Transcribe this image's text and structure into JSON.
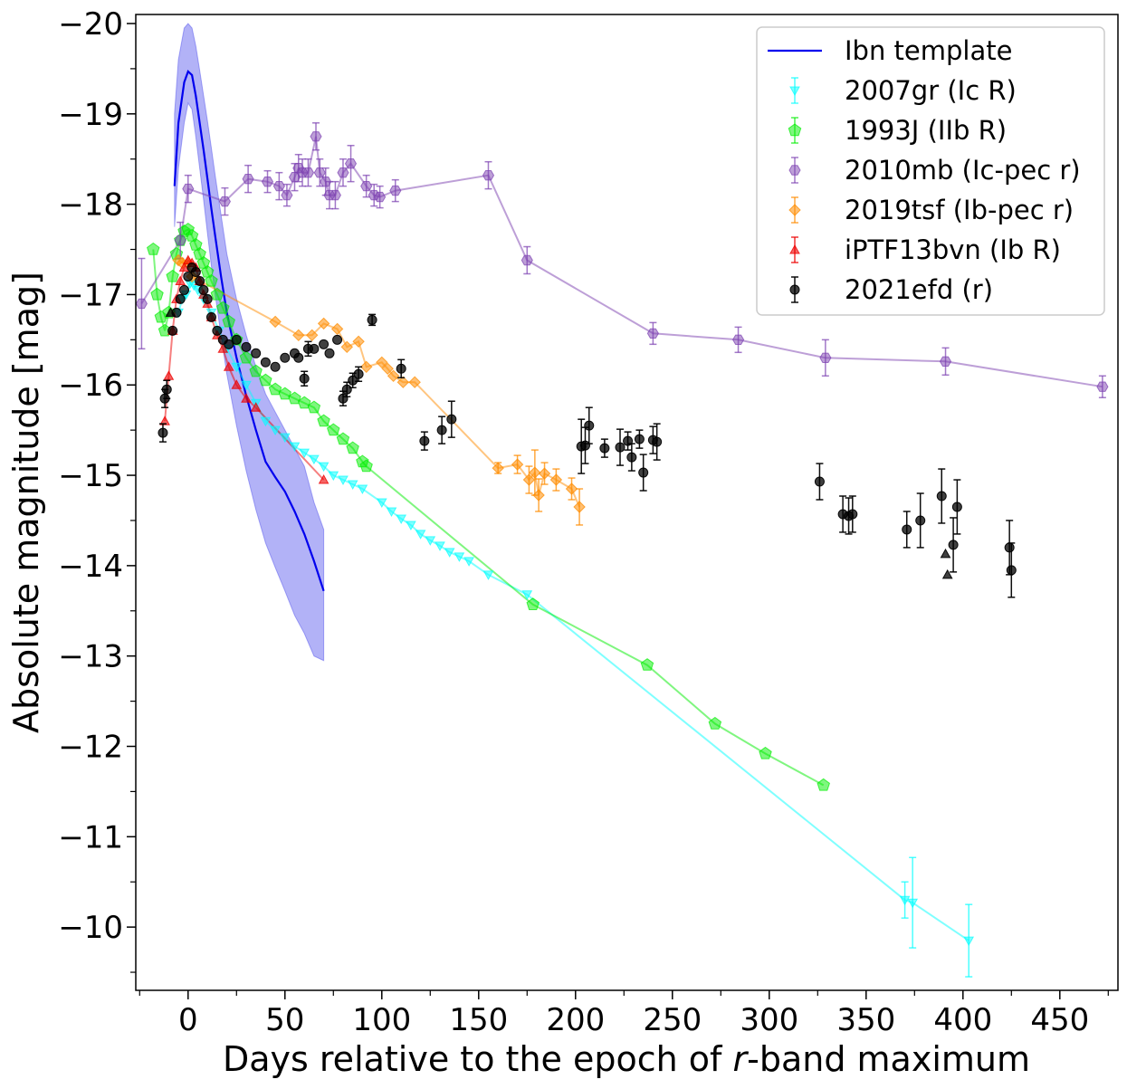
{
  "chart_data": {
    "type": "scatter",
    "xlabel_prefix": "Days relative to the epoch of ",
    "xlabel_italic": "r",
    "xlabel_suffix": "-band maximum",
    "ylabel": "Absolute magnitude [mag]",
    "xlim": [
      -27,
      480
    ],
    "ylim": [
      -9.3,
      -20.1
    ],
    "y_inverted": true,
    "x_ticks": [
      0,
      50,
      100,
      150,
      200,
      250,
      300,
      350,
      400,
      450
    ],
    "x_tick_labels": [
      "0",
      "50",
      "100",
      "150",
      "200",
      "250",
      "300",
      "350",
      "400",
      "450"
    ],
    "y_ticks": [
      -20,
      -19,
      -18,
      -17,
      -16,
      -15,
      -14,
      -13,
      -12,
      -11,
      -10
    ],
    "y_tick_labels": [
      "−20",
      "−19",
      "−18",
      "−17",
      "−16",
      "−15",
      "−14",
      "−13",
      "−12",
      "−11",
      "−10"
    ],
    "legend_position": "top-right",
    "series": [
      {
        "name": "Ibn template",
        "kind": "template",
        "color": "#0000ee",
        "band_color": "#5555ee",
        "x": [
          -7,
          -5,
          -2,
          0,
          2,
          4,
          6,
          8,
          10,
          12,
          14,
          17,
          20,
          25,
          30,
          35,
          40,
          45,
          50,
          55,
          60,
          65,
          70
        ],
        "y": [
          -18.2,
          -18.9,
          -19.35,
          -19.47,
          -19.43,
          -19.2,
          -18.9,
          -18.6,
          -18.28,
          -17.95,
          -17.65,
          -17.2,
          -16.8,
          -16.3,
          -15.88,
          -15.5,
          -15.15,
          -14.98,
          -14.82,
          -14.6,
          -14.35,
          -14.05,
          -13.72
        ],
        "y_upper": [
          -19.0,
          -19.6,
          -19.95,
          -20.0,
          -19.95,
          -19.75,
          -19.48,
          -19.2,
          -18.92,
          -18.62,
          -18.32,
          -17.88,
          -17.45,
          -16.95,
          -16.55,
          -16.2,
          -15.9,
          -15.7,
          -15.5,
          -15.3,
          -15.1,
          -14.7,
          -14.4
        ],
        "y_lower": [
          -17.75,
          -18.4,
          -18.9,
          -19.12,
          -19.05,
          -18.75,
          -18.4,
          -18.05,
          -17.68,
          -17.32,
          -17.0,
          -16.55,
          -16.12,
          -15.55,
          -15.05,
          -14.62,
          -14.25,
          -13.98,
          -13.72,
          -13.45,
          -13.25,
          -13.0,
          -12.95
        ]
      },
      {
        "name": "2007gr (Ic R)",
        "kind": "points",
        "marker": "triangle-down",
        "color": "#00ffff",
        "line": true,
        "x": [
          -5,
          -3,
          -1,
          1,
          3,
          5,
          8,
          12,
          16,
          20,
          25,
          30,
          35,
          40,
          45,
          50,
          55,
          60,
          65,
          70,
          75,
          80,
          85,
          90,
          100,
          105,
          110,
          115,
          120,
          125,
          130,
          135,
          140,
          145,
          155,
          175,
          370,
          374,
          403
        ],
        "y": [
          -16.8,
          -16.95,
          -17.0,
          -17.12,
          -17.1,
          -17.05,
          -16.95,
          -16.8,
          -16.6,
          -16.4,
          -16.2,
          -16.0,
          -15.8,
          -15.6,
          -15.5,
          -15.42,
          -15.32,
          -15.25,
          -15.18,
          -15.1,
          -15.0,
          -14.95,
          -14.9,
          -14.85,
          -14.7,
          -14.6,
          -14.52,
          -14.45,
          -14.35,
          -14.28,
          -14.22,
          -14.15,
          -14.1,
          -14.05,
          -13.9,
          -13.68,
          -10.3,
          -10.27,
          -9.85
        ],
        "err": [
          0,
          0,
          0,
          0,
          0,
          0,
          0,
          0,
          0,
          0,
          0,
          0,
          0,
          0,
          0,
          0,
          0,
          0,
          0,
          0,
          0,
          0,
          0,
          0,
          0,
          0,
          0,
          0,
          0,
          0,
          0,
          0,
          0,
          0,
          0,
          0,
          0.2,
          0.5,
          0.4
        ]
      },
      {
        "name": "1993J (IIb R)",
        "kind": "points",
        "marker": "pentagon",
        "color": "#00ee00",
        "line": true,
        "x": [
          -18,
          -16,
          -14,
          -12,
          -10,
          -8,
          -6,
          -4,
          -2,
          0,
          2,
          4,
          6,
          8,
          10,
          12,
          15,
          18,
          21,
          25,
          30,
          35,
          40,
          45,
          50,
          55,
          60,
          65,
          70,
          75,
          80,
          85,
          90,
          92,
          178,
          237,
          272,
          298,
          328
        ],
        "y": [
          -17.5,
          -17.0,
          -16.75,
          -16.6,
          -16.8,
          -17.2,
          -17.45,
          -17.6,
          -17.7,
          -17.72,
          -17.65,
          -17.55,
          -17.45,
          -17.35,
          -17.25,
          -17.15,
          -17.0,
          -16.85,
          -16.7,
          -16.5,
          -16.3,
          -16.15,
          -16.05,
          -15.95,
          -15.9,
          -15.85,
          -15.8,
          -15.75,
          -15.6,
          -15.5,
          -15.4,
          -15.3,
          -15.15,
          -15.1,
          -13.57,
          -12.9,
          -12.25,
          -11.92,
          -11.57
        ],
        "err": []
      },
      {
        "name": "2010mb (Ic-pec r)",
        "kind": "points",
        "marker": "hexagon",
        "color": "#7b3fb0",
        "line": true,
        "x": [
          -24,
          -4,
          0,
          19,
          31,
          41,
          47,
          51,
          55,
          57,
          59,
          62,
          66,
          68,
          71,
          73,
          76,
          80,
          84,
          92,
          96,
          99,
          107,
          155,
          175,
          240,
          284,
          329,
          391,
          472
        ],
        "y": [
          -16.9,
          -17.6,
          -18.17,
          -18.03,
          -18.28,
          -18.25,
          -18.2,
          -18.1,
          -18.3,
          -18.4,
          -18.35,
          -18.35,
          -18.75,
          -18.35,
          -18.25,
          -18.1,
          -18.1,
          -18.35,
          -18.45,
          -18.2,
          -18.1,
          -18.08,
          -18.15,
          -18.32,
          -17.38,
          -16.57,
          -16.5,
          -16.3,
          -16.26,
          -15.98
        ],
        "err": [
          0.5,
          0.2,
          0.15,
          0.15,
          0.15,
          0.12,
          0.15,
          0.12,
          0.15,
          0.15,
          0.15,
          0.15,
          0.15,
          0.15,
          0.15,
          0.15,
          0.15,
          0.15,
          0.2,
          0.12,
          0.12,
          0.12,
          0.12,
          0.15,
          0.15,
          0.12,
          0.14,
          0.2,
          0.15,
          0.12
        ]
      },
      {
        "name": "2019tsf (Ib-pec r)",
        "kind": "points",
        "marker": "diamond",
        "color": "#ff8c00",
        "line": true,
        "x": [
          -5,
          -3,
          0,
          2,
          45,
          57,
          64,
          70,
          77,
          82,
          88,
          92,
          100,
          103,
          106,
          111,
          117,
          160,
          170,
          176,
          179,
          181,
          184,
          190,
          198,
          202
        ],
        "y": [
          -17.38,
          -17.35,
          -17.35,
          -17.2,
          -16.7,
          -16.55,
          -16.55,
          -16.68,
          -16.62,
          -16.42,
          -16.48,
          -16.2,
          -16.25,
          -16.18,
          -16.1,
          -16.03,
          -16.03,
          -15.08,
          -15.12,
          -14.95,
          -15.03,
          -14.78,
          -15.02,
          -14.95,
          -14.85,
          -14.65
        ],
        "err": [
          0,
          0,
          0,
          0,
          0,
          0,
          0,
          0,
          0,
          0,
          0,
          0,
          0,
          0,
          0,
          0,
          0,
          0.06,
          0.1,
          0.15,
          0.25,
          0.18,
          0.12,
          0.12,
          0.12,
          0.2
        ]
      },
      {
        "name": "iPTF13bvn (Ib R)",
        "kind": "points",
        "marker": "triangle-up",
        "color": "#ee0000",
        "line": true,
        "x": [
          -12,
          -10,
          -8,
          -6,
          -4,
          -2,
          0,
          2,
          4,
          6,
          8,
          10,
          12,
          15,
          18,
          21,
          25,
          30,
          35,
          70
        ],
        "y": [
          -15.6,
          -16.1,
          -16.6,
          -16.95,
          -17.15,
          -17.3,
          -17.38,
          -17.35,
          -17.3,
          -17.15,
          -17.0,
          -16.9,
          -16.75,
          -16.55,
          -16.4,
          -16.2,
          -16.0,
          -15.85,
          -15.75,
          -14.95
        ],
        "err": []
      },
      {
        "name": "2021efd (r)",
        "kind": "points",
        "marker": "circle",
        "color": "#000000",
        "line": false,
        "x": [
          -13,
          -12,
          -11,
          -8,
          -6,
          -4,
          -2,
          0,
          2,
          4,
          6,
          8,
          10,
          12,
          15,
          18,
          21,
          25,
          30,
          35,
          40,
          45,
          50,
          55,
          57,
          60,
          62,
          65,
          70,
          73,
          77,
          80,
          82,
          85,
          88,
          95,
          110,
          122,
          131,
          136,
          203,
          205,
          207,
          215,
          223,
          227,
          229,
          233,
          235,
          240,
          242,
          326,
          338,
          341,
          343,
          371,
          378,
          389,
          395,
          397,
          424,
          425
        ],
        "y": [
          -15.47,
          -15.85,
          -15.95,
          -16.6,
          -16.8,
          -16.95,
          -17.05,
          -17.2,
          -17.3,
          -17.25,
          -17.15,
          -17.05,
          -16.95,
          -16.75,
          -16.6,
          -16.5,
          -16.45,
          -16.5,
          -16.42,
          -16.35,
          -16.25,
          -16.2,
          -16.3,
          -16.35,
          -16.3,
          -16.07,
          -16.4,
          -16.4,
          -16.45,
          -16.35,
          -16.5,
          -15.85,
          -15.95,
          -16.05,
          -16.12,
          -16.72,
          -16.18,
          -15.38,
          -15.5,
          -15.62,
          -15.32,
          -15.33,
          -15.55,
          -15.3,
          -15.31,
          -15.38,
          -15.2,
          -15.4,
          -15.03,
          -15.39,
          -15.37,
          -14.93,
          -14.57,
          -14.55,
          -14.57,
          -14.4,
          -14.5,
          -14.77,
          -14.23,
          -14.65,
          -14.2,
          -13.95
        ],
        "err": [
          0.1,
          0.1,
          0.1,
          0,
          0,
          0,
          0,
          0,
          0,
          0,
          0,
          0,
          0,
          0,
          0,
          0,
          0,
          0,
          0,
          0,
          0,
          0,
          0,
          0,
          0,
          0.08,
          0.08,
          0,
          0,
          0,
          0,
          0.08,
          0.08,
          0.08,
          0.08,
          0.06,
          0.1,
          0.1,
          0.15,
          0.2,
          0.3,
          0.2,
          0.2,
          0.1,
          0.2,
          0.1,
          0.15,
          0.1,
          0.2,
          0.15,
          0.2,
          0.2,
          0.2,
          0.2,
          0.2,
          0.2,
          0.3,
          0.3,
          0.3,
          0.3,
          0.3,
          0.3
        ],
        "triangle_x": [
          -9,
          391,
          392
        ],
        "triangle_y": [
          -16.8,
          -14.13,
          -13.9
        ]
      }
    ]
  }
}
